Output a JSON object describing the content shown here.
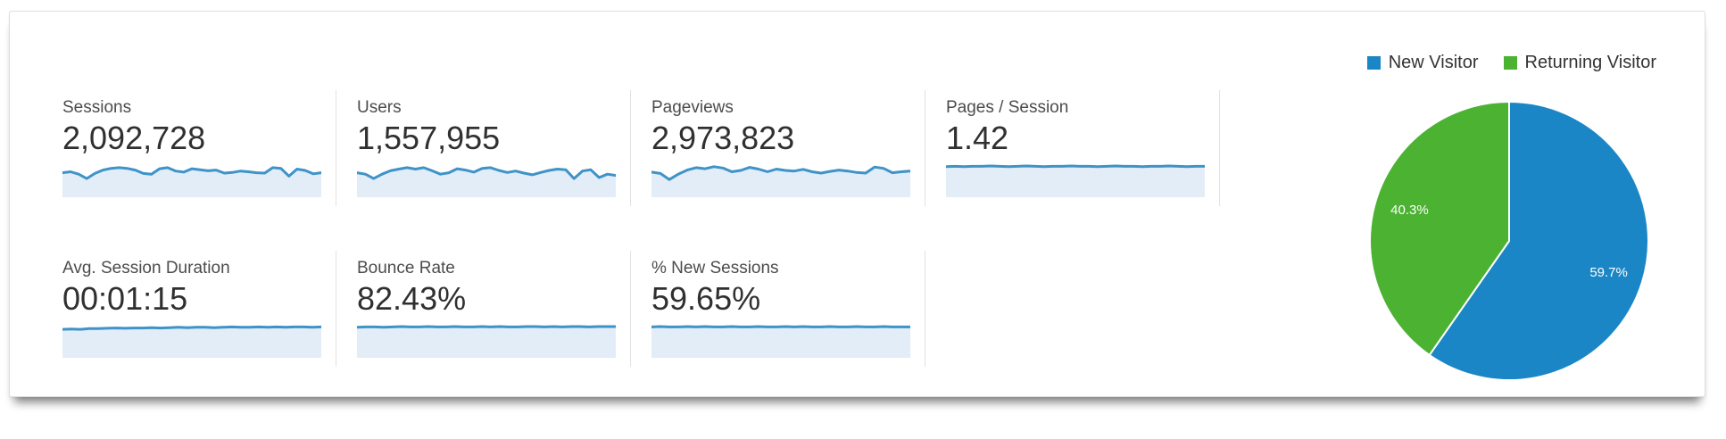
{
  "metrics": [
    {
      "label": "Sessions",
      "value": "2,092,728"
    },
    {
      "label": "Users",
      "value": "1,557,955"
    },
    {
      "label": "Pageviews",
      "value": "2,973,823"
    },
    {
      "label": "Pages / Session",
      "value": "1.42"
    },
    {
      "label": "Avg. Session Duration",
      "value": "00:01:15"
    },
    {
      "label": "Bounce Rate",
      "value": "82.43%"
    },
    {
      "label": "% New Sessions",
      "value": "59.65%"
    }
  ],
  "chart_data": [
    {
      "type": "pie",
      "labels": [
        "New Visitor",
        "Returning Visitor"
      ],
      "values": [
        59.7,
        40.3
      ],
      "display_labels": [
        "59.7%",
        "40.3%"
      ],
      "colors": [
        "#1a86c5",
        "#4cb232"
      ],
      "legend_position": "top-right",
      "start_angle_deg": 0,
      "direction": "clockwise",
      "label_color": "#ffffff"
    },
    {
      "type": "line",
      "name": "Sessions sparkline",
      "color": "#3e93c8",
      "fill": "#e3edf8",
      "values": [
        0.72,
        0.75,
        0.68,
        0.55,
        0.7,
        0.8,
        0.85,
        0.87,
        0.85,
        0.8,
        0.7,
        0.68,
        0.84,
        0.87,
        0.77,
        0.74,
        0.84,
        0.81,
        0.78,
        0.8,
        0.71,
        0.73,
        0.77,
        0.75,
        0.72,
        0.71,
        0.87,
        0.85,
        0.62,
        0.83,
        0.79,
        0.69,
        0.72
      ]
    },
    {
      "type": "line",
      "name": "Users sparkline",
      "color": "#3e93c8",
      "fill": "#e3edf8",
      "values": [
        0.72,
        0.68,
        0.55,
        0.68,
        0.78,
        0.83,
        0.87,
        0.83,
        0.87,
        0.78,
        0.68,
        0.72,
        0.84,
        0.8,
        0.74,
        0.85,
        0.87,
        0.79,
        0.73,
        0.77,
        0.71,
        0.66,
        0.73,
        0.79,
        0.83,
        0.81,
        0.55,
        0.77,
        0.81,
        0.58,
        0.68,
        0.64
      ]
    },
    {
      "type": "line",
      "name": "Pageviews sparkline",
      "color": "#3e93c8",
      "fill": "#e3edf8",
      "values": [
        0.74,
        0.7,
        0.52,
        0.68,
        0.8,
        0.87,
        0.84,
        0.9,
        0.86,
        0.75,
        0.79,
        0.88,
        0.83,
        0.75,
        0.83,
        0.79,
        0.77,
        0.82,
        0.75,
        0.71,
        0.76,
        0.8,
        0.77,
        0.73,
        0.71,
        0.89,
        0.85,
        0.72,
        0.75,
        0.77
      ]
    },
    {
      "type": "line",
      "name": "Pages / Session sparkline",
      "color": "#3e93c8",
      "fill": "#e3edf8",
      "values": [
        0.9,
        0.91,
        0.9,
        0.91,
        0.91,
        0.92,
        0.91,
        0.9,
        0.91,
        0.92,
        0.91,
        0.9,
        0.91,
        0.91,
        0.92,
        0.91,
        0.91,
        0.9,
        0.91,
        0.92,
        0.91,
        0.91,
        0.9,
        0.91,
        0.91,
        0.92,
        0.91,
        0.9,
        0.91,
        0.91
      ]
    },
    {
      "type": "line",
      "name": "Avg. Session Duration sparkline",
      "color": "#3e93c8",
      "fill": "#e3edf8",
      "values": [
        0.84,
        0.85,
        0.84,
        0.86,
        0.86,
        0.87,
        0.88,
        0.87,
        0.88,
        0.88,
        0.89,
        0.88,
        0.89,
        0.9,
        0.89,
        0.9,
        0.9,
        0.89,
        0.9,
        0.91,
        0.9,
        0.9,
        0.91,
        0.9,
        0.91,
        0.9,
        0.91,
        0.91,
        0.9,
        0.91
      ]
    },
    {
      "type": "line",
      "name": "Bounce Rate sparkline",
      "color": "#3e93c8",
      "fill": "#e3edf8",
      "values": [
        0.9,
        0.91,
        0.91,
        0.9,
        0.91,
        0.92,
        0.91,
        0.91,
        0.92,
        0.91,
        0.91,
        0.92,
        0.91,
        0.91,
        0.92,
        0.91,
        0.92,
        0.91,
        0.91,
        0.92,
        0.92,
        0.91,
        0.92,
        0.91,
        0.92,
        0.92,
        0.91,
        0.92,
        0.92,
        0.92
      ]
    },
    {
      "type": "line",
      "name": "% New Sessions sparkline",
      "color": "#3e93c8",
      "fill": "#e3edf8",
      "values": [
        0.91,
        0.92,
        0.91,
        0.91,
        0.92,
        0.91,
        0.92,
        0.91,
        0.91,
        0.92,
        0.91,
        0.91,
        0.92,
        0.91,
        0.91,
        0.92,
        0.91,
        0.92,
        0.91,
        0.91,
        0.92,
        0.91,
        0.91,
        0.92,
        0.91,
        0.91,
        0.92,
        0.91,
        0.91,
        0.91
      ]
    }
  ]
}
